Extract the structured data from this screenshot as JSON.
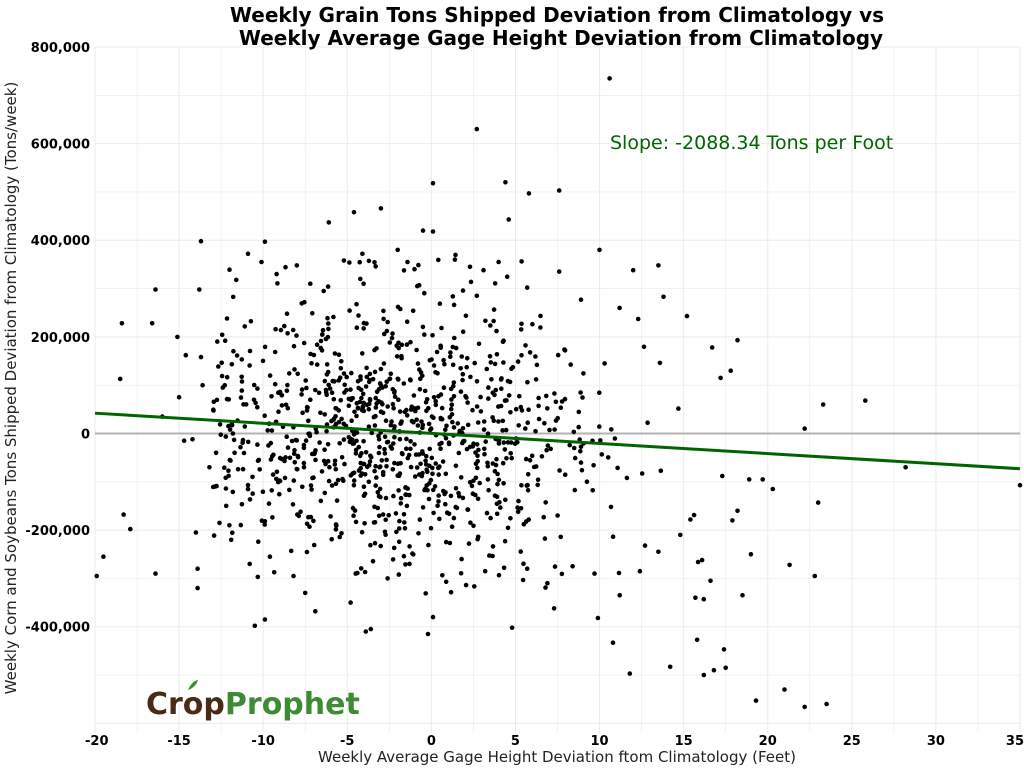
{
  "chart_data": {
    "type": "scatter",
    "title_lines": [
      "Weekly Grain Tons Shipped Deviation from Climatology vs",
      "Weekly Average Gage Height Deviation from Climatology"
    ],
    "xlabel": "Weekly Average Gage Height Deviation ftom Climatology (Feet)",
    "ylabel": "Weekly Corn and Soybeans Tons Shipped Deviation from Climatology (Tons/week)",
    "xlim": [
      -20,
      35
    ],
    "ylim": [
      -620000,
      800000
    ],
    "x_ticks": [
      -20,
      -15,
      -10,
      -5,
      0,
      5,
      10,
      15,
      20,
      25,
      30,
      35
    ],
    "x_tick_labels": [
      "-20",
      "-15",
      "-10",
      "-5",
      "0",
      "5",
      "10",
      "15",
      "20",
      "25",
      "30",
      "35"
    ],
    "y_ticks": [
      800000,
      600000,
      400000,
      200000,
      0,
      -200000,
      -400000
    ],
    "y_tick_labels": [
      "800,000",
      "600,000",
      "400,000",
      "200,000",
      "0",
      "-200,000",
      "-400,000"
    ],
    "grid": true,
    "annotation": "Slope:  -2088.34  Tons per Foot",
    "zero_line_color": "#b3b3b3",
    "point_color": "#000000",
    "trend_color": "#006400",
    "trend_line": {
      "slope": -2088.34,
      "x_start": -20,
      "y_start": 42000,
      "x_end": 35,
      "y_end": -73000
    },
    "outlier_points": [
      [
        10.6,
        735000
      ],
      [
        2.7,
        630000
      ],
      [
        0.1,
        518000
      ],
      [
        4.4,
        520000
      ],
      [
        7.6,
        503000
      ],
      [
        5.8,
        497000
      ],
      [
        4.6,
        443000
      ],
      [
        -4.6,
        458000
      ],
      [
        -6.1,
        437000
      ],
      [
        -3.0,
        466000
      ],
      [
        -0.5,
        420000
      ],
      [
        0.1,
        418000
      ],
      [
        -13.7,
        398000
      ],
      [
        -9.9,
        397000
      ],
      [
        10.0,
        380000
      ],
      [
        -18.4,
        228000
      ],
      [
        -16.4,
        298000
      ],
      [
        -16.6,
        228000
      ],
      [
        -18.5,
        113000
      ],
      [
        -15.1,
        200000
      ],
      [
        -14.6,
        162000
      ],
      [
        -13.7,
        158000
      ],
      [
        -13.8,
        298000
      ],
      [
        -13.6,
        100000
      ],
      [
        -19.9,
        -295000
      ],
      [
        -19.5,
        -255000
      ],
      [
        -18.3,
        -168000
      ],
      [
        -17.9,
        -198000
      ],
      [
        -16.4,
        -290000
      ],
      [
        -13.9,
        -280000
      ],
      [
        -13.9,
        -320000
      ],
      [
        -14.0,
        -205000
      ],
      [
        -14.2,
        -12000
      ],
      [
        -14.7,
        -15000
      ],
      [
        -10.5,
        -398000
      ],
      [
        -9.9,
        -385000
      ],
      [
        -6.9,
        -368000
      ],
      [
        -3.6,
        -405000
      ],
      [
        -3.9,
        -410000
      ],
      [
        -4.8,
        -350000
      ],
      [
        -0.2,
        -415000
      ],
      [
        0.1,
        -380000
      ],
      [
        4.8,
        -402000
      ],
      [
        7.3,
        -362000
      ],
      [
        9.9,
        -382000
      ],
      [
        10.8,
        -433000
      ],
      [
        11.8,
        -497000
      ],
      [
        14.2,
        -483000
      ],
      [
        15.8,
        -427000
      ],
      [
        16.2,
        -500000
      ],
      [
        16.8,
        -490000
      ],
      [
        17.4,
        -447000
      ],
      [
        17.5,
        -485000
      ],
      [
        16.6,
        -305000
      ],
      [
        15.7,
        -340000
      ],
      [
        16.2,
        -343000
      ],
      [
        18.5,
        -335000
      ],
      [
        19.3,
        -553000
      ],
      [
        21.0,
        -530000
      ],
      [
        22.2,
        -566000
      ],
      [
        23.5,
        -560000
      ],
      [
        21.3,
        -272000
      ],
      [
        22.8,
        -295000
      ],
      [
        23.0,
        -143000
      ],
      [
        23.3,
        60000
      ],
      [
        25.8,
        68000
      ],
      [
        22.2,
        10000
      ],
      [
        20.3,
        -115000
      ],
      [
        19.7,
        -95000
      ],
      [
        18.9,
        -95000
      ],
      [
        17.3,
        -88000
      ],
      [
        18.2,
        193000
      ],
      [
        16.7,
        178000
      ],
      [
        17.2,
        115000
      ],
      [
        17.8,
        130000
      ],
      [
        15.2,
        243000
      ],
      [
        12.0,
        338000
      ],
      [
        13.5,
        348000
      ],
      [
        13.8,
        283000
      ],
      [
        12.3,
        237000
      ],
      [
        10.3,
        145000
      ],
      [
        28.2,
        -70000
      ],
      [
        35.0,
        -107000
      ],
      [
        19.0,
        -250000
      ],
      [
        17.9,
        -180000
      ],
      [
        18.2,
        -160000
      ],
      [
        13.5,
        -245000
      ],
      [
        14.8,
        -210000
      ],
      [
        16.1,
        -262000
      ],
      [
        15.4,
        -178000
      ],
      [
        11.2,
        -335000
      ],
      [
        12.4,
        -285000
      ],
      [
        12.7,
        -232000
      ],
      [
        9.7,
        -290000
      ],
      [
        8.4,
        -275000
      ],
      [
        6.9,
        -310000
      ],
      [
        5.7,
        -280000
      ],
      [
        3.2,
        -285000
      ],
      [
        1.8,
        -260000
      ],
      [
        -1.3,
        -270000
      ],
      [
        -2.6,
        -300000
      ],
      [
        -4.5,
        -290000
      ],
      [
        -7.5,
        -330000
      ],
      [
        -8.2,
        -295000
      ],
      [
        -9.6,
        -255000
      ],
      [
        -10.8,
        -270000
      ],
      [
        -11.9,
        -220000
      ],
      [
        -12.6,
        -185000
      ],
      [
        -10.1,
        355000
      ],
      [
        -9.2,
        330000
      ],
      [
        -8.0,
        348000
      ],
      [
        -7.2,
        310000
      ],
      [
        -6.4,
        295000
      ],
      [
        -5.2,
        358000
      ],
      [
        -4.1,
        372000
      ],
      [
        -2.0,
        380000
      ],
      [
        -1.0,
        340000
      ],
      [
        1.4,
        360000
      ],
      [
        2.3,
        345000
      ],
      [
        3.1,
        338000
      ],
      [
        4.0,
        355000
      ],
      [
        5.7,
        302000
      ],
      [
        7.6,
        335000
      ],
      [
        8.9,
        277000
      ],
      [
        -11.6,
        318000
      ],
      [
        -10.9,
        372000
      ],
      [
        -12.4,
        95000
      ],
      [
        -12.8,
        -40000
      ],
      [
        -13.2,
        -70000
      ],
      [
        -12.2,
        -150000
      ],
      [
        -15.0,
        75000
      ],
      [
        -16.0,
        35000
      ]
    ],
    "cluster_note": "plus roughly 1,000 additional points densely scattered around the center of the plot"
  },
  "logo": {
    "part1": "Crop",
    "part2": "Prophet",
    "color1": "#4a2a14",
    "color2": "#3f8a35"
  },
  "colors": {
    "background": "#ffffff",
    "grid": "#ebebeb"
  }
}
